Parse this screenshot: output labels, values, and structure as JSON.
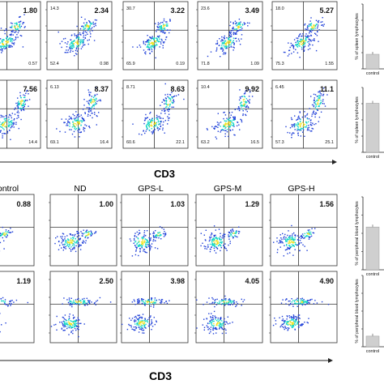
{
  "section_top": {
    "xlabel": "CD3",
    "row1_values": [
      "1.80",
      "2.34",
      "3.22",
      "3.49",
      "5.27"
    ],
    "row1_corner_labels": [
      [
        "",
        "",
        "0.57"
      ],
      [
        "14.3",
        "52.4",
        "0.98"
      ],
      [
        "30.7",
        "65.9",
        "0.19"
      ],
      [
        "23.6",
        "71.8",
        "1.09"
      ],
      [
        "18.0",
        "75.3",
        "1.55"
      ]
    ],
    "row2_values": [
      "7.56",
      "8.37",
      "8.63",
      "9.92",
      "11.1"
    ],
    "row2_corner_labels": [
      [
        "",
        "",
        "14.4"
      ],
      [
        "6.13",
        "69.1",
        "16.4"
      ],
      [
        "8.71",
        "60.6",
        "22.1"
      ],
      [
        "10.4",
        "63.2",
        "16.5"
      ],
      [
        "6.45",
        "57.3",
        "25.1"
      ]
    ],
    "bar_ylabel": "% of spleen lymphocytes",
    "bar_xtick": "control"
  },
  "section_bottom": {
    "xlabel": "CD3",
    "column_headers": [
      "ontrol",
      "ND",
      "GPS-L",
      "GPS-M",
      "GPS-H"
    ],
    "row3_values": [
      "0.88",
      "1.00",
      "1.03",
      "1.29",
      "1.56"
    ],
    "row4_values": [
      "1.19",
      "2.50",
      "3.98",
      "4.05",
      "4.90"
    ],
    "bar_ylabel": "% of peripheral blood lymphocytes",
    "bar_xtick": "control"
  },
  "colors": {
    "density_low": "#1e3fd8",
    "density_mid": "#12d6c6",
    "density_high": "#f2e21e",
    "bar_fill": "#cfcfcf"
  },
  "chart_data": [
    {
      "type": "bar",
      "panel": "spleen lymphocytes, row 1",
      "categories": [
        "control"
      ],
      "values": [
        1.8
      ],
      "ylabel": "% of spleen lymphocytes"
    },
    {
      "type": "bar",
      "panel": "spleen lymphocytes, row 2",
      "categories": [
        "control"
      ],
      "values": [
        7.56
      ],
      "ylabel": "% of spleen lymphocytes"
    },
    {
      "type": "bar",
      "panel": "peripheral blood lymphocytes, row 3",
      "categories": [
        "control"
      ],
      "values": [
        0.88
      ],
      "ylabel": "% of peripheral blood lymphocytes"
    },
    {
      "type": "bar",
      "panel": "peripheral blood lymphocytes, row 4",
      "categories": [
        "control"
      ],
      "values": [
        1.19
      ],
      "ylabel": "% of peripheral blood lymphocytes"
    }
  ]
}
